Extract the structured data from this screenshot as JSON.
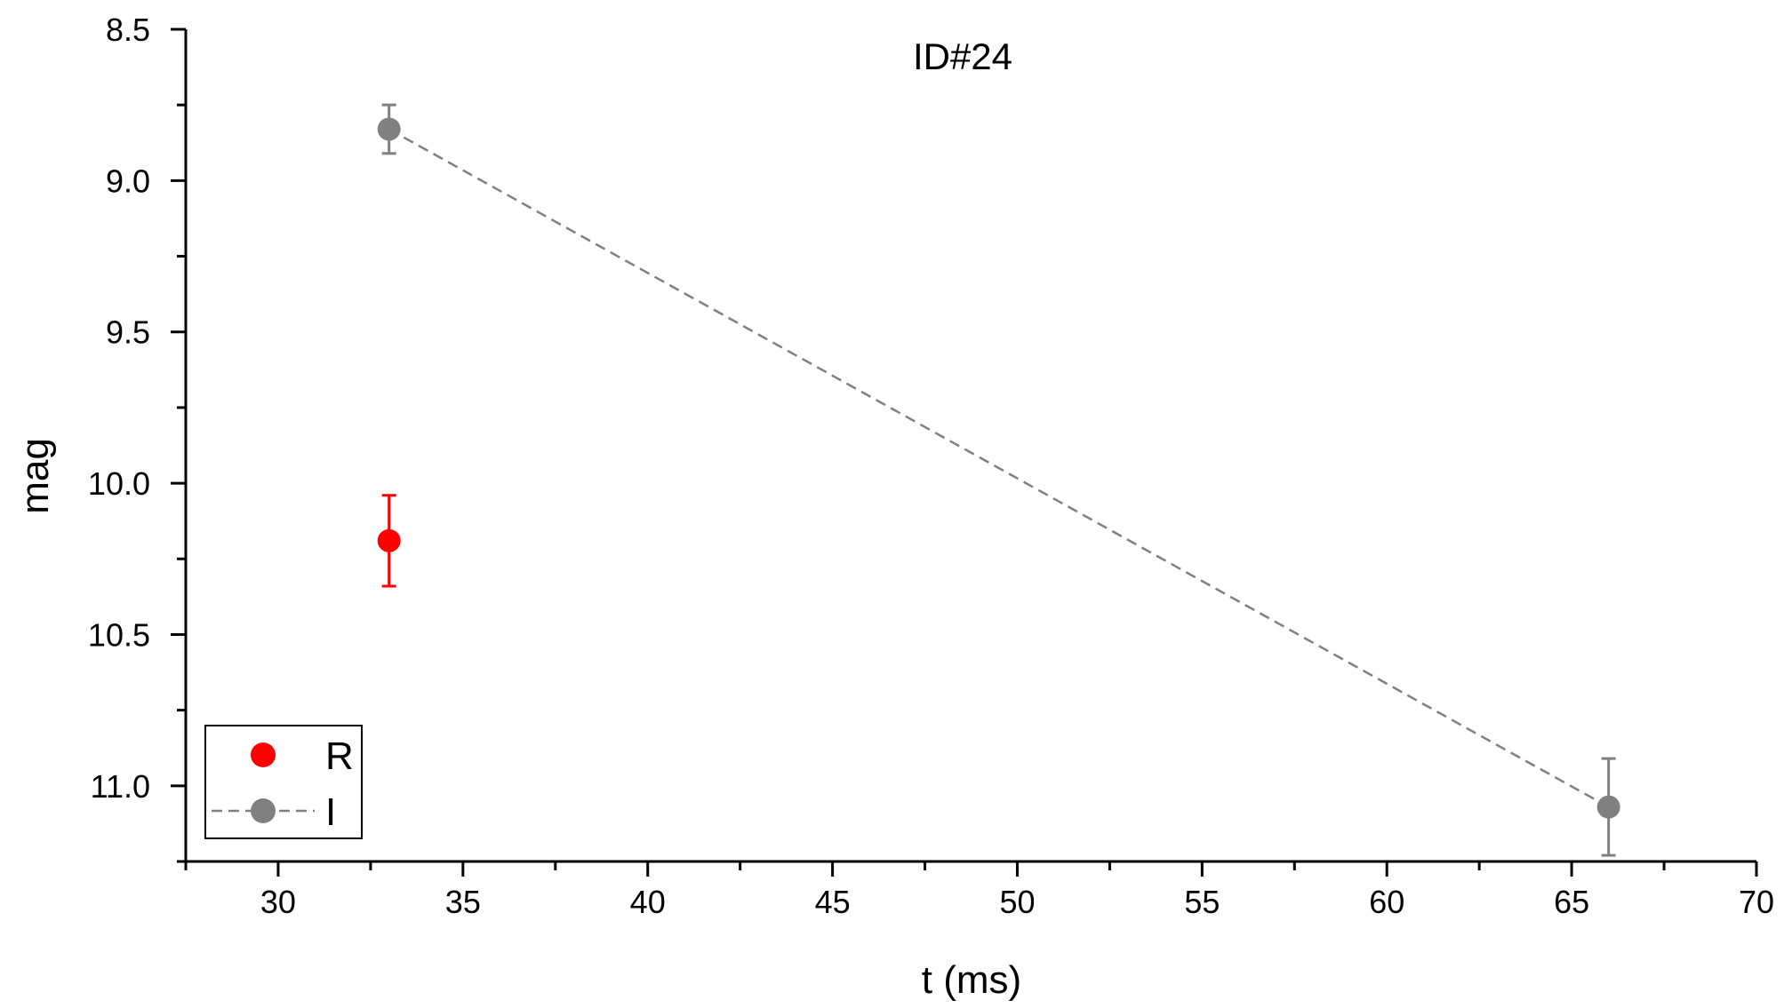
{
  "chart_data": {
    "type": "scatter",
    "title": "ID#24",
    "xlabel": "t (ms)",
    "ylabel": "mag",
    "xlim": [
      27.5,
      70
    ],
    "ylim": [
      8.5,
      11.25
    ],
    "y_inverted": true,
    "x_ticks": [
      30,
      35,
      40,
      45,
      50,
      55,
      60,
      65,
      70
    ],
    "x_tick_labels": [
      "30",
      "35",
      "40",
      "45",
      "50",
      "55",
      "60",
      "65",
      "70"
    ],
    "y_ticks": [
      8.5,
      9.0,
      9.5,
      10.0,
      10.5,
      11.0
    ],
    "y_tick_labels": [
      "8.5",
      "9.0",
      "9.5",
      "10.0",
      "10.5",
      "11.0"
    ],
    "grid": false,
    "legend_position": "bottom-left",
    "series": [
      {
        "name": "R",
        "color": "#ff0000",
        "marker": "circle",
        "line": "none",
        "points": [
          {
            "x": 33,
            "y": 10.19,
            "err": 0.15
          }
        ]
      },
      {
        "name": "I",
        "color": "#808080",
        "marker": "circle",
        "line": "dashed",
        "points": [
          {
            "x": 33,
            "y": 8.83,
            "err": 0.08
          },
          {
            "x": 66,
            "y": 11.07,
            "err": 0.16
          }
        ]
      }
    ]
  }
}
